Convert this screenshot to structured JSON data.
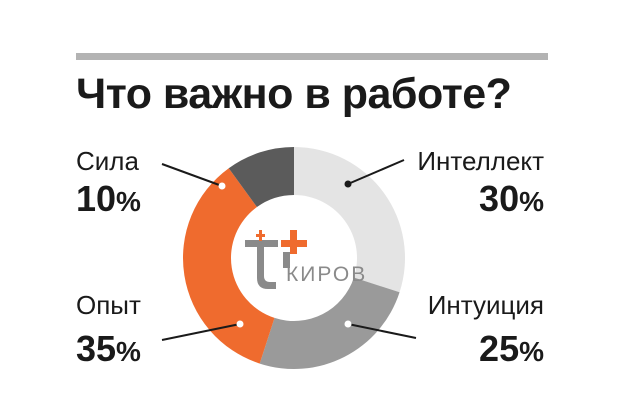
{
  "title": "Что важно в работе?",
  "logo": {
    "brand_text": "КИРОВ",
    "colors": {
      "cross": "#ef6b2e",
      "t": "#8a8a8a",
      "text": "#8a8a8a"
    }
  },
  "colors": {
    "accent_rule": "#b3b3b3"
  },
  "chart_data": {
    "type": "pie",
    "title": "Что важно в работе?",
    "donut": true,
    "slices": [
      {
        "label": "Интеллект",
        "value": 30,
        "value_text": "30",
        "color": "#e4e4e4"
      },
      {
        "label": "Интуиция",
        "value": 25,
        "value_text": "25",
        "color": "#9a9a9a"
      },
      {
        "label": "Опыт",
        "value": 35,
        "value_text": "35",
        "color": "#ef6b2e"
      },
      {
        "label": "Сила",
        "value": 10,
        "value_text": "10",
        "color": "#5b5b5b"
      }
    ],
    "unit": "%"
  }
}
